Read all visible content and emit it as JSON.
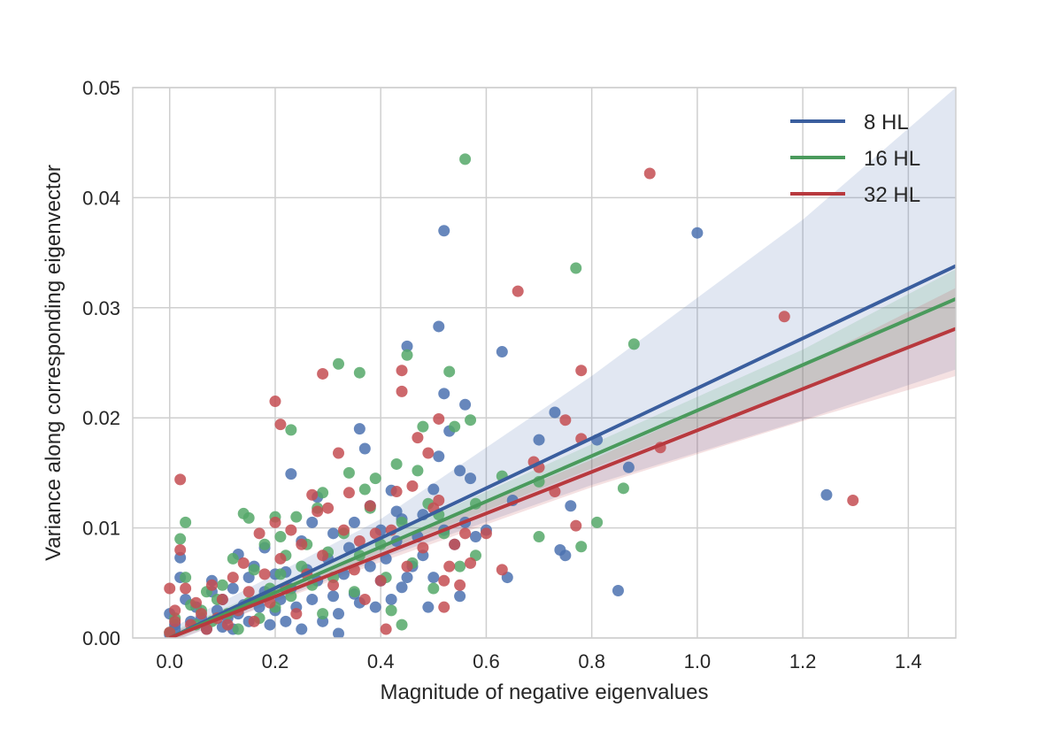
{
  "chart_data": {
    "type": "scatter",
    "title": "",
    "xlabel": "Magnitude of negative eigenvalues",
    "ylabel": "Variance along corresponding eigenvector",
    "xlim": [
      -0.07,
      1.49
    ],
    "ylim": [
      0.0,
      0.05
    ],
    "xticks": [
      0.0,
      0.2,
      0.4,
      0.6,
      0.8,
      1.0,
      1.2,
      1.4
    ],
    "xtick_labels": [
      "0.0",
      "0.2",
      "0.4",
      "0.6",
      "0.8",
      "1.0",
      "1.2",
      "1.4"
    ],
    "yticks": [
      0.0,
      0.01,
      0.02,
      0.03,
      0.04,
      0.05
    ],
    "ytick_labels": [
      "0.00",
      "0.01",
      "0.02",
      "0.03",
      "0.04",
      "0.05"
    ],
    "grid": true,
    "legend_position": "top-right",
    "background": "#ffffff",
    "grid_color": "#cfcfcf",
    "series": [
      {
        "name": "8 HL",
        "color": "#4c72b0",
        "line_color": "#3a5e9e",
        "fit": {
          "x": [
            0.0,
            1.49
          ],
          "y": [
            0.0,
            0.0338
          ]
        },
        "ci": {
          "x": [
            0.0,
            0.4,
            0.8,
            1.2,
            1.49
          ],
          "lower": [
            -0.0005,
            0.0072,
            0.0139,
            0.0198,
            0.0244
          ],
          "upper": [
            0.0008,
            0.0108,
            0.0238,
            0.038,
            0.05
          ]
        },
        "points": [
          [
            0.0,
            0.0003
          ],
          [
            0.01,
            0.0008
          ],
          [
            0.0,
            0.0022
          ],
          [
            0.01,
            0.0012
          ],
          [
            0.02,
            0.0055
          ],
          [
            0.02,
            0.0073
          ],
          [
            0.03,
            0.0035
          ],
          [
            0.04,
            0.0015
          ],
          [
            0.05,
            0.0028
          ],
          [
            0.06,
            0.0018
          ],
          [
            0.07,
            0.0008
          ],
          [
            0.08,
            0.0042
          ],
          [
            0.08,
            0.0052
          ],
          [
            0.09,
            0.0025
          ],
          [
            0.1,
            0.0035
          ],
          [
            0.1,
            0.001
          ],
          [
            0.11,
            0.0018
          ],
          [
            0.12,
            0.0045
          ],
          [
            0.12,
            0.0008
          ],
          [
            0.13,
            0.0022
          ],
          [
            0.13,
            0.0076
          ],
          [
            0.14,
            0.003
          ],
          [
            0.15,
            0.0055
          ],
          [
            0.15,
            0.0015
          ],
          [
            0.16,
            0.0065
          ],
          [
            0.17,
            0.0028
          ],
          [
            0.18,
            0.0082
          ],
          [
            0.18,
            0.0042
          ],
          [
            0.19,
            0.0012
          ],
          [
            0.2,
            0.0058
          ],
          [
            0.2,
            0.0025
          ],
          [
            0.21,
            0.0035
          ],
          [
            0.22,
            0.006
          ],
          [
            0.22,
            0.0015
          ],
          [
            0.23,
            0.0149
          ],
          [
            0.23,
            0.0045
          ],
          [
            0.24,
            0.0028
          ],
          [
            0.25,
            0.0088
          ],
          [
            0.25,
            0.0008
          ],
          [
            0.26,
            0.0062
          ],
          [
            0.27,
            0.0035
          ],
          [
            0.27,
            0.0105
          ],
          [
            0.28,
            0.0052
          ],
          [
            0.28,
            0.0128
          ],
          [
            0.29,
            0.0015
          ],
          [
            0.3,
            0.0072
          ],
          [
            0.31,
            0.0038
          ],
          [
            0.31,
            0.0095
          ],
          [
            0.32,
            0.0022
          ],
          [
            0.32,
            0.0004
          ],
          [
            0.33,
            0.0058
          ],
          [
            0.34,
            0.0082
          ],
          [
            0.35,
            0.004
          ],
          [
            0.35,
            0.0105
          ],
          [
            0.36,
            0.019
          ],
          [
            0.36,
            0.0032
          ],
          [
            0.37,
            0.0172
          ],
          [
            0.38,
            0.0065
          ],
          [
            0.38,
            0.012
          ],
          [
            0.39,
            0.0028
          ],
          [
            0.4,
            0.0098
          ],
          [
            0.4,
            0.0052
          ],
          [
            0.41,
            0.0072
          ],
          [
            0.42,
            0.0134
          ],
          [
            0.42,
            0.0035
          ],
          [
            0.43,
            0.0115
          ],
          [
            0.43,
            0.0088
          ],
          [
            0.44,
            0.0046
          ],
          [
            0.44,
            0.0108
          ],
          [
            0.45,
            0.0265
          ],
          [
            0.45,
            0.0055
          ],
          [
            0.46,
            0.0065
          ],
          [
            0.47,
            0.0092
          ],
          [
            0.48,
            0.0112
          ],
          [
            0.48,
            0.0075
          ],
          [
            0.49,
            0.0028
          ],
          [
            0.5,
            0.0135
          ],
          [
            0.5,
            0.0055
          ],
          [
            0.51,
            0.0283
          ],
          [
            0.51,
            0.0165
          ],
          [
            0.52,
            0.037
          ],
          [
            0.52,
            0.0222
          ],
          [
            0.52,
            0.0098
          ],
          [
            0.53,
            0.0188
          ],
          [
            0.54,
            0.0085
          ],
          [
            0.55,
            0.0152
          ],
          [
            0.55,
            0.0038
          ],
          [
            0.56,
            0.0212
          ],
          [
            0.56,
            0.0105
          ],
          [
            0.57,
            0.0145
          ],
          [
            0.58,
            0.0092
          ],
          [
            0.6,
            0.0098
          ],
          [
            0.63,
            0.026
          ],
          [
            0.64,
            0.0055
          ],
          [
            0.65,
            0.0125
          ],
          [
            0.7,
            0.018
          ],
          [
            0.73,
            0.0205
          ],
          [
            0.74,
            0.008
          ],
          [
            0.75,
            0.0075
          ],
          [
            0.76,
            0.012
          ],
          [
            0.81,
            0.018
          ],
          [
            0.85,
            0.0043
          ],
          [
            0.87,
            0.0155
          ],
          [
            1.0,
            0.0368
          ],
          [
            1.245,
            0.013
          ]
        ]
      },
      {
        "name": "16 HL",
        "color": "#55a868",
        "line_color": "#4a9a5c",
        "fit": {
          "x": [
            0.0,
            1.49
          ],
          "y": [
            0.0,
            0.0308
          ]
        },
        "ci": {
          "x": [
            0.0,
            0.4,
            0.8,
            1.2,
            1.49
          ],
          "lower": [
            -0.0003,
            0.0078,
            0.0154,
            0.0228,
            0.0282
          ],
          "upper": [
            0.0005,
            0.009,
            0.0176,
            0.0262,
            0.0335
          ]
        },
        "points": [
          [
            0.0,
            0.0005
          ],
          [
            0.01,
            0.0018
          ],
          [
            0.02,
            0.009
          ],
          [
            0.03,
            0.0105
          ],
          [
            0.03,
            0.0055
          ],
          [
            0.04,
            0.003
          ],
          [
            0.05,
            0.0012
          ],
          [
            0.06,
            0.0025
          ],
          [
            0.07,
            0.0042
          ],
          [
            0.08,
            0.0015
          ],
          [
            0.09,
            0.0035
          ],
          [
            0.1,
            0.0048
          ],
          [
            0.11,
            0.0022
          ],
          [
            0.12,
            0.0072
          ],
          [
            0.13,
            0.0008
          ],
          [
            0.14,
            0.0113
          ],
          [
            0.15,
            0.0109
          ],
          [
            0.15,
            0.0032
          ],
          [
            0.16,
            0.0062
          ],
          [
            0.17,
            0.0018
          ],
          [
            0.18,
            0.0085
          ],
          [
            0.19,
            0.0045
          ],
          [
            0.2,
            0.011
          ],
          [
            0.2,
            0.0028
          ],
          [
            0.21,
            0.0092
          ],
          [
            0.21,
            0.0058
          ],
          [
            0.22,
            0.0075
          ],
          [
            0.23,
            0.0189
          ],
          [
            0.23,
            0.0038
          ],
          [
            0.24,
            0.011
          ],
          [
            0.25,
            0.0065
          ],
          [
            0.26,
            0.0085
          ],
          [
            0.27,
            0.0048
          ],
          [
            0.28,
            0.0118
          ],
          [
            0.29,
            0.0022
          ],
          [
            0.29,
            0.0132
          ],
          [
            0.3,
            0.0078
          ],
          [
            0.31,
            0.0055
          ],
          [
            0.32,
            0.0249
          ],
          [
            0.33,
            0.0095
          ],
          [
            0.34,
            0.015
          ],
          [
            0.35,
            0.0042
          ],
          [
            0.36,
            0.0241
          ],
          [
            0.36,
            0.0075
          ],
          [
            0.37,
            0.0135
          ],
          [
            0.38,
            0.0118
          ],
          [
            0.39,
            0.0145
          ],
          [
            0.4,
            0.0085
          ],
          [
            0.41,
            0.0055
          ],
          [
            0.42,
            0.0025
          ],
          [
            0.43,
            0.0158
          ],
          [
            0.44,
            0.0012
          ],
          [
            0.44,
            0.0105
          ],
          [
            0.45,
            0.0257
          ],
          [
            0.46,
            0.0068
          ],
          [
            0.47,
            0.0152
          ],
          [
            0.48,
            0.0192
          ],
          [
            0.49,
            0.0122
          ],
          [
            0.5,
            0.0045
          ],
          [
            0.51,
            0.0112
          ],
          [
            0.52,
            0.0095
          ],
          [
            0.53,
            0.0242
          ],
          [
            0.54,
            0.0192
          ],
          [
            0.55,
            0.0065
          ],
          [
            0.56,
            0.0435
          ],
          [
            0.57,
            0.0198
          ],
          [
            0.58,
            0.0122
          ],
          [
            0.58,
            0.0075
          ],
          [
            0.63,
            0.0147
          ],
          [
            0.7,
            0.0142
          ],
          [
            0.7,
            0.0092
          ],
          [
            0.77,
            0.0336
          ],
          [
            0.78,
            0.0083
          ],
          [
            0.81,
            0.0105
          ],
          [
            0.86,
            0.0136
          ],
          [
            0.88,
            0.0267
          ]
        ]
      },
      {
        "name": "32 HL",
        "color": "#c44e52",
        "line_color": "#b8393e",
        "fit": {
          "x": [
            0.0,
            1.49
          ],
          "y": [
            0.0,
            0.0281
          ]
        },
        "ci": {
          "x": [
            0.0,
            0.4,
            0.8,
            1.2,
            1.49
          ],
          "lower": [
            -0.0004,
            0.0069,
            0.0137,
            0.0197,
            0.0238
          ],
          "upper": [
            0.0004,
            0.0083,
            0.0162,
            0.0248,
            0.0318
          ]
        },
        "points": [
          [
            0.0,
            0.0005
          ],
          [
            0.0,
            0.0045
          ],
          [
            0.01,
            0.0015
          ],
          [
            0.01,
            0.0025
          ],
          [
            0.02,
            0.0144
          ],
          [
            0.02,
            0.008
          ],
          [
            0.03,
            0.0045
          ],
          [
            0.04,
            0.0012
          ],
          [
            0.05,
            0.0032
          ],
          [
            0.06,
            0.0022
          ],
          [
            0.07,
            0.0008
          ],
          [
            0.08,
            0.0048
          ],
          [
            0.09,
            0.0018
          ],
          [
            0.1,
            0.0035
          ],
          [
            0.11,
            0.0012
          ],
          [
            0.12,
            0.0055
          ],
          [
            0.13,
            0.0025
          ],
          [
            0.14,
            0.0068
          ],
          [
            0.15,
            0.0042
          ],
          [
            0.16,
            0.0015
          ],
          [
            0.17,
            0.0095
          ],
          [
            0.18,
            0.0058
          ],
          [
            0.19,
            0.0032
          ],
          [
            0.2,
            0.0215
          ],
          [
            0.2,
            0.0105
          ],
          [
            0.21,
            0.0194
          ],
          [
            0.21,
            0.0072
          ],
          [
            0.22,
            0.0045
          ],
          [
            0.23,
            0.0098
          ],
          [
            0.24,
            0.0022
          ],
          [
            0.25,
            0.0085
          ],
          [
            0.26,
            0.0058
          ],
          [
            0.27,
            0.013
          ],
          [
            0.28,
            0.0115
          ],
          [
            0.29,
            0.024
          ],
          [
            0.29,
            0.0075
          ],
          [
            0.3,
            0.0118
          ],
          [
            0.31,
            0.0048
          ],
          [
            0.32,
            0.0168
          ],
          [
            0.33,
            0.0098
          ],
          [
            0.34,
            0.0132
          ],
          [
            0.35,
            0.0062
          ],
          [
            0.36,
            0.0088
          ],
          [
            0.37,
            0.0035
          ],
          [
            0.38,
            0.012
          ],
          [
            0.39,
            0.0095
          ],
          [
            0.4,
            0.0052
          ],
          [
            0.41,
            0.0008
          ],
          [
            0.42,
            0.0098
          ],
          [
            0.43,
            0.0133
          ],
          [
            0.44,
            0.0243
          ],
          [
            0.44,
            0.0224
          ],
          [
            0.45,
            0.0065
          ],
          [
            0.46,
            0.0138
          ],
          [
            0.47,
            0.0182
          ],
          [
            0.48,
            0.0082
          ],
          [
            0.49,
            0.0168
          ],
          [
            0.5,
            0.0118
          ],
          [
            0.51,
            0.0199
          ],
          [
            0.51,
            0.0125
          ],
          [
            0.52,
            0.0052
          ],
          [
            0.52,
            0.0028
          ],
          [
            0.53,
            0.0065
          ],
          [
            0.54,
            0.0085
          ],
          [
            0.55,
            0.0048
          ],
          [
            0.56,
            0.0095
          ],
          [
            0.57,
            0.0068
          ],
          [
            0.6,
            0.0095
          ],
          [
            0.63,
            0.0062
          ],
          [
            0.66,
            0.0315
          ],
          [
            0.69,
            0.016
          ],
          [
            0.7,
            0.0155
          ],
          [
            0.73,
            0.0133
          ],
          [
            0.75,
            0.0198
          ],
          [
            0.77,
            0.0102
          ],
          [
            0.78,
            0.0243
          ],
          [
            0.78,
            0.0181
          ],
          [
            0.91,
            0.0422
          ],
          [
            0.93,
            0.0173
          ],
          [
            1.165,
            0.0292
          ],
          [
            1.295,
            0.0125
          ]
        ]
      }
    ]
  }
}
